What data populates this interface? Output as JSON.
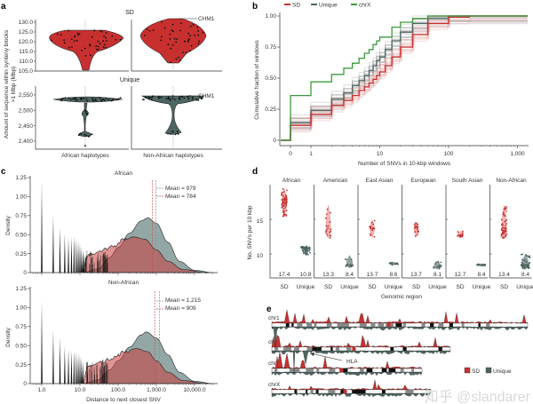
{
  "panel_labels": {
    "a": "a",
    "b": "b",
    "c": "c",
    "d": "d",
    "e": "e"
  },
  "watermark": "知乎 @slandarer",
  "colors": {
    "sd": "#c8302f",
    "unique": "#4d6663",
    "chrX": "#3d9a3a",
    "sd_light": "#e08a8a",
    "unique_light": "#93a8a6"
  },
  "chart_data": [
    {
      "panel": "a",
      "type": "violin",
      "facets": [
        "SD",
        "Unique"
      ],
      "categories": [
        "African haplotypes",
        "Non-African haplotypes"
      ],
      "ylabel": "Amount of sequence within synteny blocks >1 Mbp (Mbp)",
      "sd_yticks": [
        "105.0",
        "110.0",
        "115.0",
        "120.0",
        "125.0",
        "130.0"
      ],
      "unique_yticks": [
        "2,400",
        "2,450",
        "2,500",
        "2,550"
      ],
      "annotation": "CHM1",
      "sd_ranges": {
        "African haplotypes": [
          105.5,
          126
        ],
        "Non-African haplotypes": [
          109,
          131.5
        ]
      },
      "unique_ranges": {
        "African haplotypes": [
          2385,
          2540
        ],
        "Non-African haplotypes": [
          2420,
          2548
        ]
      }
    },
    {
      "panel": "b",
      "type": "line",
      "xlabel": "Number of SNVs in 10-kbp windows",
      "ylabel": "Cumulative fraction of windows",
      "xscale": "log (with 0)",
      "xticks": [
        "0",
        "1",
        "10",
        "100",
        "1,000"
      ],
      "yticks": [
        "0",
        "0.25",
        "0.50",
        "0.75",
        "1.00"
      ],
      "ylim": [
        0,
        1
      ],
      "legend": "top-left",
      "series": [
        {
          "name": "SD",
          "color": "#c8302f",
          "points": [
            [
              0,
              0.12
            ],
            [
              1,
              0.21
            ],
            [
              2,
              0.28
            ],
            [
              3,
              0.32
            ],
            [
              4,
              0.36
            ],
            [
              5,
              0.4
            ],
            [
              6,
              0.43
            ],
            [
              7,
              0.46
            ],
            [
              8,
              0.49
            ],
            [
              9,
              0.52
            ],
            [
              10,
              0.55
            ],
            [
              12,
              0.6
            ],
            [
              15,
              0.67
            ],
            [
              20,
              0.75
            ],
            [
              30,
              0.85
            ],
            [
              50,
              0.94
            ],
            [
              100,
              0.99
            ],
            [
              200,
              1.0
            ],
            [
              1500,
              1.0
            ]
          ]
        },
        {
          "name": "Unique",
          "color": "#4d6663",
          "points": [
            [
              0,
              0.14
            ],
            [
              1,
              0.24
            ],
            [
              2,
              0.33
            ],
            [
              3,
              0.38
            ],
            [
              4,
              0.44
            ],
            [
              5,
              0.48
            ],
            [
              6,
              0.52
            ],
            [
              7,
              0.56
            ],
            [
              8,
              0.6
            ],
            [
              9,
              0.64
            ],
            [
              10,
              0.67
            ],
            [
              12,
              0.73
            ],
            [
              15,
              0.8
            ],
            [
              20,
              0.87
            ],
            [
              30,
              0.94
            ],
            [
              50,
              0.98
            ],
            [
              100,
              1.0
            ],
            [
              1500,
              1.0
            ]
          ]
        },
        {
          "name": "chrX",
          "color": "#3d9a3a",
          "points": [
            [
              0,
              0.36
            ],
            [
              1,
              0.47
            ],
            [
              2,
              0.53
            ],
            [
              3,
              0.58
            ],
            [
              4,
              0.62
            ],
            [
              5,
              0.66
            ],
            [
              6,
              0.7
            ],
            [
              7,
              0.73
            ],
            [
              8,
              0.77
            ],
            [
              9,
              0.8
            ],
            [
              10,
              0.83
            ],
            [
              15,
              0.91
            ],
            [
              20,
              0.95
            ],
            [
              30,
              0.98
            ],
            [
              50,
              1.0
            ],
            [
              1500,
              1.0
            ]
          ]
        }
      ]
    },
    {
      "panel": "c",
      "type": "area",
      "xlabel": "Distance to next closest SNV",
      "ylabel": "Density",
      "xscale": "log",
      "xticks": [
        "1.0",
        "10.0",
        "100.0",
        "1,000.0",
        "10,000.0"
      ],
      "yticks": [
        "0",
        "0.25",
        "0.50",
        "0.75",
        "1.00",
        "1.25"
      ],
      "ylim": [
        0,
        1.25
      ],
      "subplots": [
        {
          "title": "African",
          "legend": [
            "Mean = 979",
            "Mean = 784"
          ],
          "means": {
            "unique": 979,
            "sd": 784
          },
          "spikes": [
            1.2,
            0.76,
            0.59,
            0.51,
            0.46,
            0.47,
            0.48,
            0.45,
            0.42,
            0.38,
            0.33,
            0.3,
            0.27
          ],
          "unique_density": [
            [
              12,
              0
            ],
            [
              30,
              0.05
            ],
            [
              60,
              0.2
            ],
            [
              100,
              0.33
            ],
            [
              200,
              0.52
            ],
            [
              400,
              0.68
            ],
            [
              600,
              0.72
            ],
            [
              1000,
              0.65
            ],
            [
              2000,
              0.4
            ],
            [
              4000,
              0.15
            ],
            [
              10000,
              0.03
            ],
            [
              30000,
              0
            ]
          ],
          "sd_density": [
            [
              12,
              0
            ],
            [
              15,
              0.2
            ],
            [
              20,
              0.25
            ],
            [
              40,
              0.3
            ],
            [
              80,
              0.36
            ],
            [
              150,
              0.44
            ],
            [
              250,
              0.47
            ],
            [
              500,
              0.44
            ],
            [
              1000,
              0.3
            ],
            [
              2000,
              0.15
            ],
            [
              5000,
              0.04
            ],
            [
              20000,
              0
            ]
          ]
        },
        {
          "title": "Non-African",
          "legend": [
            "Mean = 1,215",
            "Mean = 909"
          ],
          "means": {
            "unique": 1215,
            "sd": 909
          },
          "spikes": [
            1.08,
            0.71,
            0.61,
            0.49,
            0.45,
            0.44,
            0.43,
            0.42,
            0.4,
            0.37,
            0.33,
            0.3
          ],
          "unique_density": [
            [
              12,
              0
            ],
            [
              30,
              0.05
            ],
            [
              60,
              0.18
            ],
            [
              100,
              0.3
            ],
            [
              200,
              0.48
            ],
            [
              400,
              0.64
            ],
            [
              550,
              0.68
            ],
            [
              1000,
              0.6
            ],
            [
              2000,
              0.38
            ],
            [
              4000,
              0.15
            ],
            [
              10000,
              0.03
            ],
            [
              30000,
              0
            ]
          ],
          "sd_density": [
            [
              12,
              0
            ],
            [
              15,
              0.2
            ],
            [
              20,
              0.24
            ],
            [
              40,
              0.29
            ],
            [
              80,
              0.35
            ],
            [
              150,
              0.42
            ],
            [
              300,
              0.46
            ],
            [
              600,
              0.42
            ],
            [
              1000,
              0.3
            ],
            [
              2000,
              0.15
            ],
            [
              5000,
              0.04
            ],
            [
              20000,
              0
            ]
          ]
        }
      ]
    },
    {
      "panel": "d",
      "type": "violin",
      "xlabel": "Genomic region",
      "ylabel": "No. SNVs per 10 kbp",
      "yticks": [
        "10",
        "15"
      ],
      "group_labels": [
        "SD",
        "Unique"
      ],
      "facets": [
        {
          "name": "African",
          "sd": {
            "median": "17.4",
            "range": [
              15.4,
              19.4
            ]
          },
          "unique": {
            "median": "10.8",
            "range": [
              9.8,
              11.1
            ]
          }
        },
        {
          "name": "American",
          "sd": {
            "median": "13.3",
            "range": [
              12.3,
              17.0
            ]
          },
          "unique": {
            "median": "8.4",
            "range": [
              8.0,
              9.8
            ]
          }
        },
        {
          "name": "East Asian",
          "sd": {
            "median": "13.7",
            "range": [
              12.4,
              14.9
            ]
          },
          "unique": {
            "median": "8.6",
            "range": [
              8.4,
              8.8
            ]
          }
        },
        {
          "name": "European",
          "sd": {
            "median": "13.7",
            "range": [
              12.5,
              14.6
            ]
          },
          "unique": {
            "median": "8.1",
            "range": [
              7.8,
              9.0
            ]
          }
        },
        {
          "name": "South Asian",
          "sd": {
            "median": "12.7",
            "range": [
              12.3,
              13.3
            ]
          },
          "unique": {
            "median": "8.4",
            "range": [
              8.3,
              8.6
            ]
          }
        },
        {
          "name": "Non-African",
          "sd": {
            "median": "13.4",
            "range": [
              12.2,
              17.0
            ]
          },
          "unique": {
            "median": "8.4",
            "range": [
              7.8,
              10.0
            ]
          }
        }
      ]
    },
    {
      "panel": "e",
      "type": "ideogram",
      "chromosomes": [
        "chr1",
        "chr6",
        "chr8",
        "chrX"
      ],
      "legend": [
        "SD",
        "Unique"
      ],
      "annotation": "HLA"
    }
  ]
}
